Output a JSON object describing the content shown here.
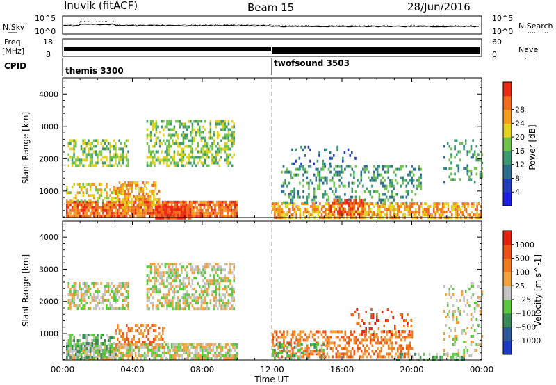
{
  "header": {
    "station": "Inuvik (fitACF)",
    "beam": "Beam 15",
    "date": "28/Jun/2016"
  },
  "panels": {
    "sky_label": "N.Sky",
    "search_label": "N.Search",
    "freq_label_line1": "Freq.",
    "freq_label_line2": "[MHz]",
    "nave_label": "Nave",
    "cpid_label": "CPID",
    "noise_ticks_left": [
      "10^5",
      "10^0"
    ],
    "noise_ticks_right": [
      "10^5",
      "10^0"
    ],
    "freq_ticks_left": [
      "18",
      "8"
    ],
    "nave_ticks_right": [
      "60",
      "0"
    ],
    "cpid_segments": [
      {
        "name": "themis 3300",
        "start_hour": 0
      },
      {
        "name": "twofsound 3503",
        "start_hour": 12
      }
    ]
  },
  "chart_data": [
    {
      "type": "heatmap",
      "title": "",
      "xlabel": "Time UT",
      "ylabel": "Slant Range [km]",
      "colorbar_label": "Power [dB]",
      "x_range_hours": [
        0,
        24
      ],
      "y_range_km": [
        180,
        4500
      ],
      "x_ticks": [
        "00:00",
        "04:00",
        "08:00",
        "12:00",
        "16:00",
        "20:00",
        "00:00"
      ],
      "y_ticks": [
        1000,
        2000,
        3000,
        4000
      ],
      "colorbar_ticks": [
        "4",
        "8",
        "12",
        "16",
        "20",
        "24",
        "28"
      ],
      "colorbar_colors": [
        "#1e1ee6",
        "#233cc0",
        "#2e6f8e",
        "#3c9a72",
        "#6fc24a",
        "#e3d21c",
        "#f49a1c",
        "#f26a1a",
        "#ea2a12"
      ],
      "regions": [
        {
          "t0": 0.2,
          "t1": 10.0,
          "r0": 200,
          "r1": 700,
          "level": 7,
          "density": 0.85
        },
        {
          "t0": 0.2,
          "t1": 3.8,
          "r0": 700,
          "r1": 1250,
          "level": 5,
          "density": 0.35
        },
        {
          "t0": 3.0,
          "t1": 5.5,
          "r0": 400,
          "r1": 1300,
          "level": 6,
          "density": 0.55
        },
        {
          "t0": 5.3,
          "t1": 7.3,
          "r0": 200,
          "r1": 550,
          "level": 8,
          "density": 0.9
        },
        {
          "t0": 0.3,
          "t1": 3.8,
          "r0": 1800,
          "r1": 2600,
          "level": 4,
          "density": 0.55
        },
        {
          "t0": 4.8,
          "t1": 9.8,
          "r0": 1800,
          "r1": 3200,
          "level": 4,
          "density": 0.5
        },
        {
          "t0": 12.0,
          "t1": 24.0,
          "r0": 200,
          "r1": 650,
          "level": 6,
          "density": 0.65
        },
        {
          "t0": 12.5,
          "t1": 20.5,
          "r0": 650,
          "r1": 1800,
          "level": 3,
          "density": 0.3
        },
        {
          "t0": 15.2,
          "t1": 17.2,
          "r0": 300,
          "r1": 750,
          "level": 8,
          "density": 0.5
        },
        {
          "t0": 13.0,
          "t1": 17.0,
          "r0": 1800,
          "r1": 2400,
          "level": 2,
          "density": 0.12
        },
        {
          "t0": 21.8,
          "t1": 24.0,
          "r0": 1300,
          "r1": 2600,
          "level": 3,
          "density": 0.22
        }
      ]
    },
    {
      "type": "heatmap",
      "title": "",
      "xlabel": "Time UT",
      "ylabel": "Slant Range [km]",
      "colorbar_label": "Velocity [m s^-1]",
      "x_range_hours": [
        0,
        24
      ],
      "y_range_km": [
        180,
        4500
      ],
      "x_ticks": [
        "00:00",
        "04:00",
        "08:00",
        "12:00",
        "16:00",
        "20:00",
        "00:00"
      ],
      "y_ticks": [
        1000,
        2000,
        3000,
        4000
      ],
      "colorbar_ticks": [
        "1000",
        "500",
        "100",
        "25",
        "−25",
        "−100",
        "−500",
        "−1000"
      ],
      "colorbar_colors": [
        "#1e3cc8",
        "#2c5a9c",
        "#3a8a5a",
        "#5ac83c",
        "#c3c3c3",
        "#f2a03c",
        "#f07a1c",
        "#ee5014",
        "#e61e0e"
      ],
      "regions": [
        {
          "t0": 0.2,
          "t1": 10.0,
          "r0": 200,
          "r1": 700,
          "level": 4,
          "density": 0.75
        },
        {
          "t0": 0.2,
          "t1": 3.0,
          "r0": 250,
          "r1": 1000,
          "level": 3,
          "density": 0.5
        },
        {
          "t0": 3.0,
          "t1": 6.0,
          "r0": 600,
          "r1": 1300,
          "level": 6,
          "density": 0.4
        },
        {
          "t0": 0.3,
          "t1": 3.8,
          "r0": 1800,
          "r1": 2600,
          "level": 4,
          "density": 0.6
        },
        {
          "t0": 4.8,
          "t1": 9.8,
          "r0": 1800,
          "r1": 3200,
          "level": 4,
          "density": 0.55
        },
        {
          "t0": 12.0,
          "t1": 20.0,
          "r0": 300,
          "r1": 1100,
          "level": 6,
          "density": 0.5
        },
        {
          "t0": 12.0,
          "t1": 15.0,
          "r0": 200,
          "r1": 700,
          "level": 3,
          "density": 0.35
        },
        {
          "t0": 19.0,
          "t1": 23.0,
          "r0": 200,
          "r1": 400,
          "level": 3,
          "density": 0.4
        },
        {
          "t0": 16.5,
          "t1": 20.0,
          "r0": 1000,
          "r1": 1800,
          "level": 7,
          "density": 0.18
        },
        {
          "t0": 21.8,
          "t1": 24.0,
          "r0": 300,
          "r1": 2600,
          "level": 4,
          "density": 0.2
        }
      ]
    }
  ]
}
